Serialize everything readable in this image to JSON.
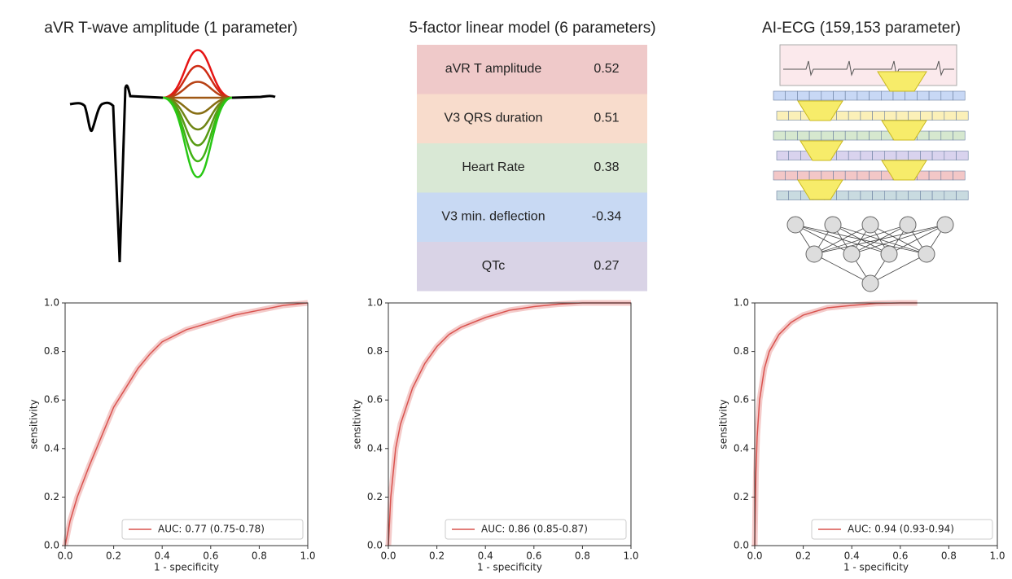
{
  "panel_titles": [
    "aVR T-wave amplitude (1 parameter)",
    "5-factor linear model (6 parameters)",
    "AI-ECG (159,153 parameter)"
  ],
  "table": {
    "rows": [
      {
        "label": "aVR T amplitude",
        "value": 0.52,
        "color": "#efc9c9"
      },
      {
        "label": "V3 QRS duration",
        "value": 0.51,
        "color": "#f8dccc"
      },
      {
        "label": "Heart Rate",
        "value": 0.38,
        "color": "#d9e8d5"
      },
      {
        "label": "V3 min. deflection",
        "value": -0.34,
        "color": "#c8d9f3"
      },
      {
        "label": "QTc",
        "value": 0.27,
        "color": "#d9d3e6"
      }
    ]
  },
  "chart_data": [
    {
      "type": "line",
      "x_label": "1 - specificity",
      "y_label": "sensitivity",
      "xlim": [
        0,
        1
      ],
      "ylim": [
        0,
        1
      ],
      "xticks": [
        {
          "value": 0,
          "label": "0.0"
        },
        0.2,
        0.4,
        0.6,
        0.8,
        {
          "value": 1,
          "label": "1.0"
        }
      ],
      "yticks": [
        {
          "value": 0,
          "label": "0.0"
        },
        0.2,
        0.4,
        0.6,
        0.8,
        {
          "value": 1,
          "label": "1.0"
        }
      ],
      "legend": "lower right",
      "x": [
        0,
        0.02,
        0.05,
        0.1,
        0.15,
        0.2,
        0.25,
        0.3,
        0.35,
        0.4,
        0.5,
        0.6,
        0.7,
        0.8,
        0.9,
        1.0
      ],
      "series": [
        {
          "name": "AUC: 0.77 (0.75-0.78)",
          "color": "#d9534f",
          "values": [
            0,
            0.1,
            0.2,
            0.33,
            0.45,
            0.57,
            0.65,
            0.73,
            0.79,
            0.84,
            0.89,
            0.92,
            0.95,
            0.97,
            0.99,
            1.0
          ]
        }
      ]
    },
    {
      "type": "line",
      "x_label": "1 - specificity",
      "y_label": "sensitivity",
      "xlim": [
        0,
        1
      ],
      "ylim": [
        0,
        1
      ],
      "xticks": [
        {
          "value": 0,
          "label": "0.0"
        },
        0.2,
        0.4,
        0.6,
        0.8,
        {
          "value": 1,
          "label": "1.0"
        }
      ],
      "yticks": [
        {
          "value": 0,
          "label": "0.0"
        },
        0.2,
        0.4,
        0.6,
        0.8,
        {
          "value": 1,
          "label": "1.0"
        }
      ],
      "legend": "lower right",
      "x": [
        0,
        0.01,
        0.03,
        0.05,
        0.1,
        0.15,
        0.2,
        0.25,
        0.3,
        0.4,
        0.5,
        0.6,
        0.7,
        0.8,
        1.0
      ],
      "series": [
        {
          "name": "AUC: 0.86 (0.85-0.87)",
          "color": "#d9534f",
          "values": [
            0,
            0.2,
            0.4,
            0.5,
            0.65,
            0.75,
            0.82,
            0.87,
            0.9,
            0.94,
            0.97,
            0.985,
            0.995,
            1.0,
            1.0
          ]
        }
      ]
    },
    {
      "type": "line",
      "x_label": "1 - specificity",
      "y_label": "sensitivity",
      "xlim": [
        0,
        1
      ],
      "ylim": [
        0,
        1
      ],
      "xticks": [
        {
          "value": 0,
          "label": "0.0"
        },
        0.2,
        0.4,
        0.6,
        0.8,
        {
          "value": 1,
          "label": "1.0"
        }
      ],
      "yticks": [
        {
          "value": 0,
          "label": "0.0"
        },
        0.2,
        0.4,
        0.6,
        0.8,
        {
          "value": 1,
          "label": "1.0"
        }
      ],
      "legend": "lower right",
      "x": [
        0,
        0.005,
        0.01,
        0.02,
        0.04,
        0.06,
        0.1,
        0.15,
        0.2,
        0.3,
        0.4,
        0.5,
        0.6,
        0.67
      ],
      "series": [
        {
          "name": "AUC: 0.94 (0.93-0.94)",
          "color": "#d9534f",
          "values": [
            0,
            0.3,
            0.45,
            0.6,
            0.73,
            0.8,
            0.87,
            0.92,
            0.95,
            0.98,
            0.99,
            0.998,
            1.0,
            1.0
          ]
        }
      ]
    }
  ]
}
